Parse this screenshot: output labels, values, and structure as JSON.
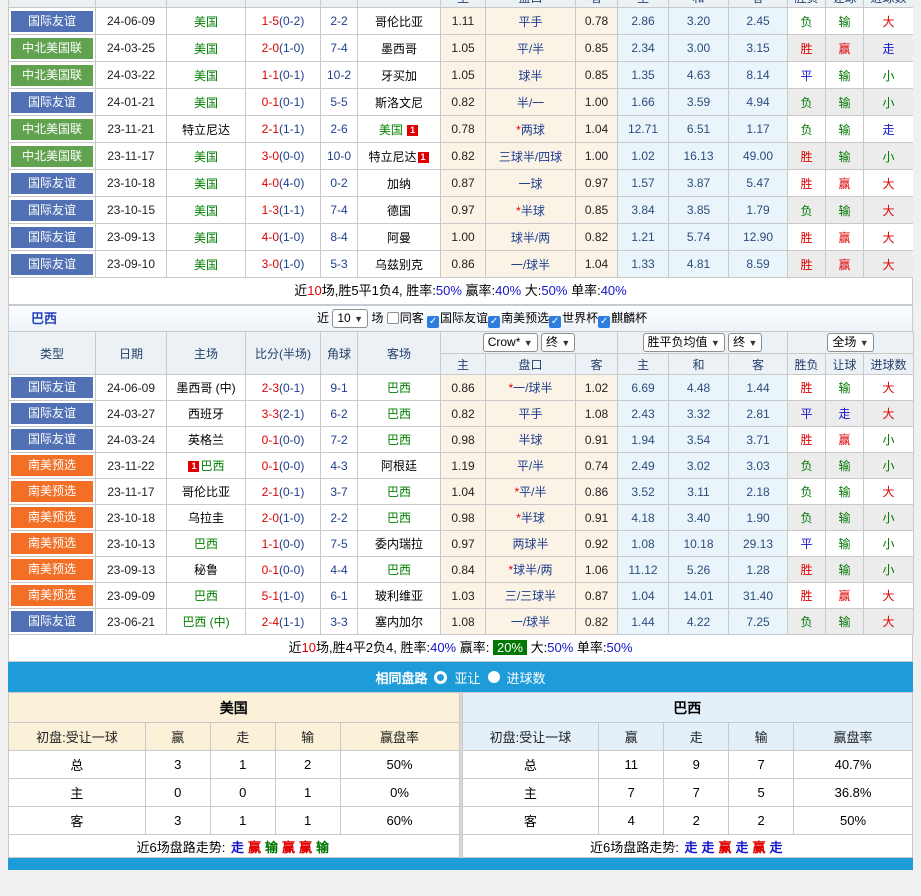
{
  "league_colors": {
    "blue": "#5271B5",
    "green": "#61A24F",
    "orange": "#F26F25"
  },
  "columns": {
    "left": [
      "类型",
      "日期",
      "主场",
      "比分(半场)",
      "角球",
      "客场"
    ],
    "sub": [
      "主",
      "盘口",
      "客",
      "主",
      "和",
      "客",
      "胜负",
      "让球",
      "进球数"
    ],
    "asia_select": "Crow*",
    "asia_final": "终",
    "euro_select": "胜平负均值",
    "euro_final": "终",
    "scope_select": "全场"
  },
  "usa": {
    "rows": [
      {
        "league": "国际友谊",
        "lc": "blue",
        "date": "24-06-09",
        "home": "美国",
        "hh": true,
        "hpre": "",
        "hsuf": "",
        "score": "1-5(0-2)",
        "corner": "2-2",
        "away": "哥伦比亚",
        "awh": false,
        "asuf": "",
        "oh": "1.11",
        "hc": "平手",
        "oa": "0.78",
        "eh": "2.86",
        "ed": "3.20",
        "ea": "2.45",
        "res": [
          "负",
          "输",
          "大"
        ]
      },
      {
        "league": "中北美国联",
        "lc": "green",
        "date": "24-03-25",
        "home": "美国",
        "hh": true,
        "hpre": "",
        "hsuf": "",
        "score": "2-0(1-0)",
        "corner": "7-4",
        "away": "墨西哥",
        "awh": false,
        "asuf": "",
        "oh": "1.05",
        "hc": "平/半",
        "oa": "0.85",
        "eh": "2.34",
        "ed": "3.00",
        "ea": "3.15",
        "res": [
          "胜",
          "赢",
          "走"
        ]
      },
      {
        "league": "中北美国联",
        "lc": "green",
        "date": "24-03-22",
        "home": "美国",
        "hh": true,
        "hpre": "",
        "hsuf": "",
        "score": "1-1(0-1)",
        "corner": "10-2",
        "away": "牙买加",
        "awh": false,
        "asuf": "",
        "oh": "1.05",
        "hc": "球半",
        "oa": "0.85",
        "eh": "1.35",
        "ed": "4.63",
        "ea": "8.14",
        "res": [
          "平",
          "输",
          "小"
        ]
      },
      {
        "league": "国际友谊",
        "lc": "blue",
        "date": "24-01-21",
        "home": "美国",
        "hh": true,
        "hpre": "",
        "hsuf": "",
        "score": "0-1(0-1)",
        "corner": "5-5",
        "away": "斯洛文尼",
        "awh": false,
        "asuf": "",
        "oh": "0.82",
        "hc": "半/一",
        "oa": "1.00",
        "eh": "1.66",
        "ed": "3.59",
        "ea": "4.94",
        "res": [
          "负",
          "输",
          "小"
        ]
      },
      {
        "league": "中北美国联",
        "lc": "green",
        "date": "23-11-21",
        "home": "特立尼达",
        "hh": false,
        "hpre": "",
        "hsuf": "",
        "score": "2-1(1-1)",
        "corner": "2-6",
        "away": "美国 ",
        "awh": true,
        "asuf": "1",
        "oh": "0.78",
        "hc": "*两球",
        "oa": "1.04",
        "eh": "12.71",
        "ed": "6.51",
        "ea": "1.17",
        "res": [
          "负",
          "输",
          "走"
        ]
      },
      {
        "league": "中北美国联",
        "lc": "green",
        "date": "23-11-17",
        "home": "美国",
        "hh": true,
        "hpre": "",
        "hsuf": "",
        "score": "3-0(0-0)",
        "corner": "10-0",
        "away": "特立尼达",
        "awh": false,
        "asuf": "1",
        "oh": "0.82",
        "hc": "三球半/四球",
        "oa": "1.00",
        "eh": "1.02",
        "ed": "16.13",
        "ea": "49.00",
        "res": [
          "胜",
          "输",
          "小"
        ]
      },
      {
        "league": "国际友谊",
        "lc": "blue",
        "date": "23-10-18",
        "home": "美国",
        "hh": true,
        "hpre": "",
        "hsuf": "",
        "score": "4-0(4-0)",
        "corner": "0-2",
        "away": "加纳",
        "awh": false,
        "asuf": "",
        "oh": "0.87",
        "hc": "一球",
        "oa": "0.97",
        "eh": "1.57",
        "ed": "3.87",
        "ea": "5.47",
        "res": [
          "胜",
          "赢",
          "大"
        ]
      },
      {
        "league": "国际友谊",
        "lc": "blue",
        "date": "23-10-15",
        "home": "美国",
        "hh": true,
        "hpre": "",
        "hsuf": "",
        "score": "1-3(1-1)",
        "corner": "7-4",
        "away": "德国",
        "awh": false,
        "asuf": "",
        "oh": "0.97",
        "hc": "*半球",
        "oa": "0.85",
        "eh": "3.84",
        "ed": "3.85",
        "ea": "1.79",
        "res": [
          "负",
          "输",
          "大"
        ]
      },
      {
        "league": "国际友谊",
        "lc": "blue",
        "date": "23-09-13",
        "home": "美国",
        "hh": true,
        "hpre": "",
        "hsuf": "",
        "score": "4-0(1-0)",
        "corner": "8-4",
        "away": "阿曼",
        "awh": false,
        "asuf": "",
        "oh": "1.00",
        "hc": "球半/两",
        "oa": "0.82",
        "eh": "1.21",
        "ed": "5.74",
        "ea": "12.90",
        "res": [
          "胜",
          "赢",
          "大"
        ]
      },
      {
        "league": "国际友谊",
        "lc": "blue",
        "date": "23-09-10",
        "home": "美国",
        "hh": true,
        "hpre": "",
        "hsuf": "",
        "score": "3-0(1-0)",
        "corner": "5-3",
        "away": "乌兹别克",
        "awh": false,
        "asuf": "",
        "oh": "0.86",
        "hc": "一/球半",
        "oa": "1.04",
        "eh": "1.33",
        "ed": "4.81",
        "ea": "8.59",
        "res": [
          "胜",
          "赢",
          "大"
        ]
      }
    ],
    "summary": [
      {
        "t": "近"
      },
      {
        "t": "10",
        "c": "red"
      },
      {
        "t": "场,胜5平1负4, 胜率:"
      },
      {
        "t": "50%",
        "c": "blue"
      },
      {
        "t": " 赢率:"
      },
      {
        "t": "40%",
        "c": "blue"
      },
      {
        "t": " 大:"
      },
      {
        "t": "50%",
        "c": "blue"
      },
      {
        "t": " 单率:"
      },
      {
        "t": "40%",
        "c": "blue"
      }
    ]
  },
  "brazil": {
    "title": "巴西",
    "filter": {
      "near_label": "近",
      "near_value": "10",
      "matches_label": "场",
      "same_away_label": "同客",
      "same_away_checked": false,
      "leagues": [
        {
          "label": "国际友谊",
          "checked": true
        },
        {
          "label": "南美预选",
          "checked": true
        },
        {
          "label": "世界杯",
          "checked": true
        },
        {
          "label": "麒麟杯",
          "checked": true
        }
      ]
    },
    "rows": [
      {
        "league": "国际友谊",
        "lc": "blue",
        "date": "24-06-09",
        "home": "墨西哥 (中)",
        "hh": false,
        "hpre": "",
        "hsuf": "",
        "score": "2-3(0-1)",
        "corner": "9-1",
        "away": "巴西",
        "awh": true,
        "asuf": "",
        "oh": "0.86",
        "hc": "*一/球半",
        "oa": "1.02",
        "eh": "6.69",
        "ed": "4.48",
        "ea": "1.44",
        "res": [
          "胜",
          "输",
          "大"
        ]
      },
      {
        "league": "国际友谊",
        "lc": "blue",
        "date": "24-03-27",
        "home": "西班牙",
        "hh": false,
        "hpre": "",
        "hsuf": "",
        "score": "3-3(2-1)",
        "corner": "6-2",
        "away": "巴西",
        "awh": true,
        "asuf": "",
        "oh": "0.82",
        "hc": "平手",
        "oa": "1.08",
        "eh": "2.43",
        "ed": "3.32",
        "ea": "2.81",
        "res": [
          "平",
          "走",
          "大"
        ]
      },
      {
        "league": "国际友谊",
        "lc": "blue",
        "date": "24-03-24",
        "home": "英格兰",
        "hh": false,
        "hpre": "",
        "hsuf": "",
        "score": "0-1(0-0)",
        "corner": "7-2",
        "away": "巴西",
        "awh": true,
        "asuf": "",
        "oh": "0.98",
        "hc": "半球",
        "oa": "0.91",
        "eh": "1.94",
        "ed": "3.54",
        "ea": "3.71",
        "res": [
          "胜",
          "赢",
          "小"
        ]
      },
      {
        "league": "南美预选",
        "lc": "orange",
        "date": "23-11-22",
        "home": "巴西",
        "hh": true,
        "hpre": "1",
        "hsuf": "",
        "score": "0-1(0-0)",
        "corner": "4-3",
        "away": "阿根廷",
        "awh": false,
        "asuf": "",
        "oh": "1.19",
        "hc": "平/半",
        "oa": "0.74",
        "eh": "2.49",
        "ed": "3.02",
        "ea": "3.03",
        "res": [
          "负",
          "输",
          "小"
        ]
      },
      {
        "league": "南美预选",
        "lc": "orange",
        "date": "23-11-17",
        "home": "哥伦比亚",
        "hh": false,
        "hpre": "",
        "hsuf": "",
        "score": "2-1(0-1)",
        "corner": "3-7",
        "away": "巴西",
        "awh": true,
        "asuf": "",
        "oh": "1.04",
        "hc": "*平/半",
        "oa": "0.86",
        "eh": "3.52",
        "ed": "3.11",
        "ea": "2.18",
        "res": [
          "负",
          "输",
          "大"
        ]
      },
      {
        "league": "南美预选",
        "lc": "orange",
        "date": "23-10-18",
        "home": "乌拉圭",
        "hh": false,
        "hpre": "",
        "hsuf": "",
        "score": "2-0(1-0)",
        "corner": "2-2",
        "away": "巴西",
        "awh": true,
        "asuf": "",
        "oh": "0.98",
        "hc": "*半球",
        "oa": "0.91",
        "eh": "4.18",
        "ed": "3.40",
        "ea": "1.90",
        "res": [
          "负",
          "输",
          "小"
        ]
      },
      {
        "league": "南美预选",
        "lc": "orange",
        "date": "23-10-13",
        "home": "巴西",
        "hh": true,
        "hpre": "",
        "hsuf": "",
        "score": "1-1(0-0)",
        "corner": "7-5",
        "away": "委内瑞拉",
        "awh": false,
        "asuf": "",
        "oh": "0.97",
        "hc": "两球半",
        "oa": "0.92",
        "eh": "1.08",
        "ed": "10.18",
        "ea": "29.13",
        "res": [
          "平",
          "输",
          "小"
        ]
      },
      {
        "league": "南美预选",
        "lc": "orange",
        "date": "23-09-13",
        "home": "秘鲁",
        "hh": false,
        "hpre": "",
        "hsuf": "",
        "score": "0-1(0-0)",
        "corner": "4-4",
        "away": "巴西",
        "awh": true,
        "asuf": "",
        "oh": "0.84",
        "hc": "*球半/两",
        "oa": "1.06",
        "eh": "11.12",
        "ed": "5.26",
        "ea": "1.28",
        "res": [
          "胜",
          "输",
          "小"
        ]
      },
      {
        "league": "南美预选",
        "lc": "orange",
        "date": "23-09-09",
        "home": "巴西",
        "hh": true,
        "hpre": "",
        "hsuf": "",
        "score": "5-1(1-0)",
        "corner": "6-1",
        "away": "玻利维亚",
        "awh": false,
        "asuf": "",
        "oh": "1.03",
        "hc": "三/三球半",
        "oa": "0.87",
        "eh": "1.04",
        "ed": "14.01",
        "ea": "31.40",
        "res": [
          "胜",
          "赢",
          "大"
        ]
      },
      {
        "league": "国际友谊",
        "lc": "blue",
        "date": "23-06-21",
        "home": "巴西 (中)",
        "hh": true,
        "hpre": "",
        "hsuf": "",
        "score": "2-4(1-1)",
        "corner": "3-3",
        "away": "塞内加尔",
        "awh": false,
        "asuf": "",
        "oh": "1.08",
        "hc": "一/球半",
        "oa": "0.82",
        "eh": "1.44",
        "ed": "4.22",
        "ea": "7.25",
        "res": [
          "负",
          "输",
          "大"
        ]
      }
    ],
    "summary": [
      {
        "t": "近"
      },
      {
        "t": "10",
        "c": "red"
      },
      {
        "t": "场,胜4平2负4, 胜率:"
      },
      {
        "t": "40%",
        "c": "blue"
      },
      {
        "t": " 赢率: "
      },
      {
        "t": "20%",
        "c": "greenbox"
      },
      {
        "t": " 大:"
      },
      {
        "t": "50%",
        "c": "blue"
      },
      {
        "t": " 单率:"
      },
      {
        "t": "50%",
        "c": "blue"
      }
    ]
  },
  "same_bar": {
    "title": "相同盘路",
    "options": [
      {
        "label": "亚让",
        "selected": true
      },
      {
        "label": "进球数",
        "selected": false
      }
    ]
  },
  "compare": {
    "headers": [
      "初盘:受让一球",
      "赢",
      "走",
      "输",
      "赢盘率"
    ],
    "trend_label": "近6场盘路走势:",
    "left": {
      "title": "美国",
      "rows": [
        [
          "总",
          "3",
          "1",
          "2",
          "50%"
        ],
        [
          "主",
          "0",
          "0",
          "1",
          "0%"
        ],
        [
          "客",
          "3",
          "1",
          "1",
          "60%"
        ]
      ],
      "trend": [
        "走",
        "赢",
        "输",
        "赢",
        "赢",
        "输"
      ]
    },
    "right": {
      "title": "巴西",
      "rows": [
        [
          "总",
          "11",
          "9",
          "7",
          "40.7%"
        ],
        [
          "主",
          "7",
          "7",
          "5",
          "36.8%"
        ],
        [
          "客",
          "4",
          "2",
          "2",
          "50%"
        ]
      ],
      "trend": [
        "走",
        "走",
        "赢",
        "走",
        "赢",
        "走"
      ]
    }
  }
}
